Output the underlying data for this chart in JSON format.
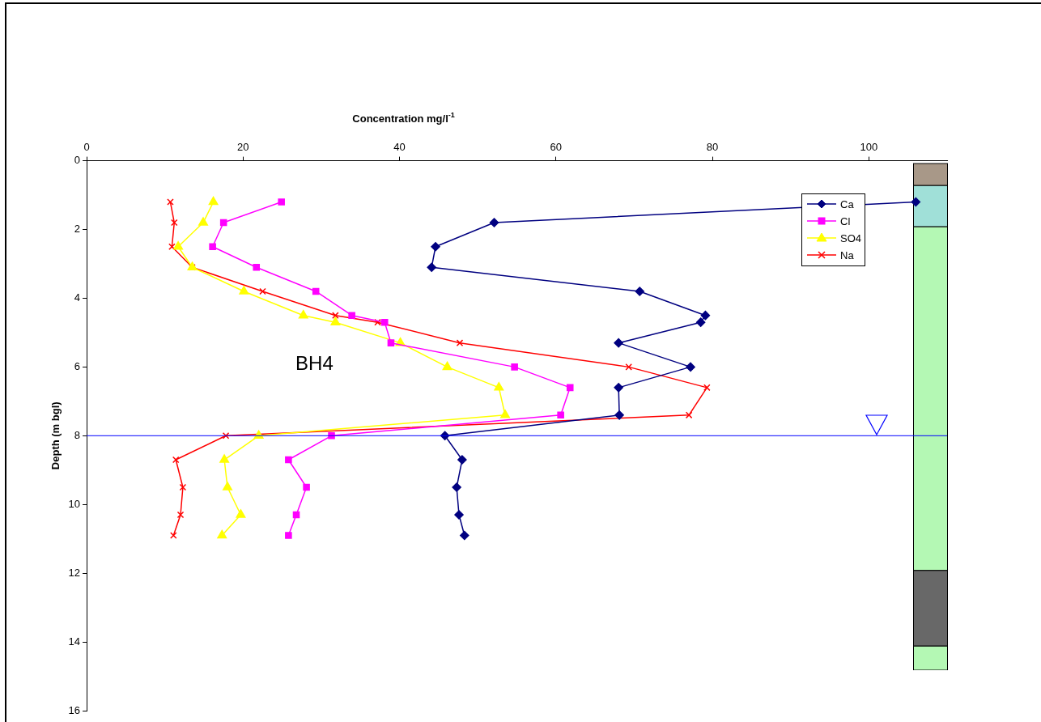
{
  "chart_data": {
    "type": "line",
    "xlabel": "Concentration mg/l$^{-1}$",
    "ylabel": "Depth (m bgl)",
    "annotations": [
      "BH4"
    ],
    "xlim": [
      0,
      110
    ],
    "xticks": [
      0,
      20,
      40,
      60,
      80,
      100
    ],
    "ylim": [
      16,
      0
    ],
    "yticks": [
      0,
      2,
      4,
      6,
      8,
      10,
      12,
      14,
      16
    ],
    "grid": false,
    "legend": "top right",
    "ref_lines": [
      {
        "axis": "y",
        "value": 8,
        "color": "#0000ff"
      }
    ],
    "series": [
      {
        "name": "Ca",
        "color": "#000080",
        "marker": "diamond",
        "x": [
          106,
          52.1,
          44.6,
          44.1,
          70.7,
          79.1,
          78.5,
          68.0,
          77.2,
          68.0,
          68.1,
          45.8,
          48.0,
          47.3,
          47.6,
          48.3
        ],
        "values": [
          1.2,
          1.8,
          2.5,
          3.1,
          3.8,
          4.5,
          4.7,
          5.3,
          6.0,
          6.6,
          7.4,
          8.0,
          8.7,
          9.5,
          10.3,
          10.9
        ]
      },
      {
        "name": "Cl",
        "color": "#ff00ff",
        "marker": "square",
        "x": [
          24.9,
          17.5,
          16.1,
          21.7,
          29.3,
          33.9,
          38.1,
          38.9,
          54.7,
          61.8,
          60.6,
          31.3,
          25.8,
          28.1,
          26.8,
          25.8
        ],
        "values": [
          1.2,
          1.8,
          2.5,
          3.1,
          3.8,
          4.5,
          4.7,
          5.3,
          6.0,
          6.6,
          7.4,
          8.0,
          8.7,
          9.5,
          10.3,
          10.9
        ]
      },
      {
        "name": "SO4",
        "color": "#ffff00",
        "marker": "triangle",
        "x": [
          16.2,
          14.9,
          11.7,
          13.5,
          20.1,
          27.7,
          31.8,
          40.1,
          46.1,
          52.7,
          53.5,
          22.0,
          17.6,
          18.0,
          19.7,
          17.3
        ],
        "values": [
          1.2,
          1.8,
          2.5,
          3.1,
          3.8,
          4.5,
          4.7,
          5.3,
          6.0,
          6.6,
          7.4,
          8.0,
          8.7,
          9.5,
          10.3,
          10.9
        ]
      },
      {
        "name": "Na",
        "color": "#ff0000",
        "marker": "cross",
        "x": [
          10.7,
          11.2,
          10.9,
          13.5,
          22.5,
          31.8,
          37.2,
          47.7,
          69.3,
          79.3,
          77.0,
          17.8,
          11.4,
          12.3,
          12.0,
          11.1
        ],
        "values": [
          1.2,
          1.8,
          2.5,
          3.1,
          3.8,
          4.5,
          4.7,
          5.3,
          6.0,
          6.6,
          7.4,
          8.0,
          8.7,
          9.5,
          10.3,
          10.9
        ]
      }
    ]
  }
}
